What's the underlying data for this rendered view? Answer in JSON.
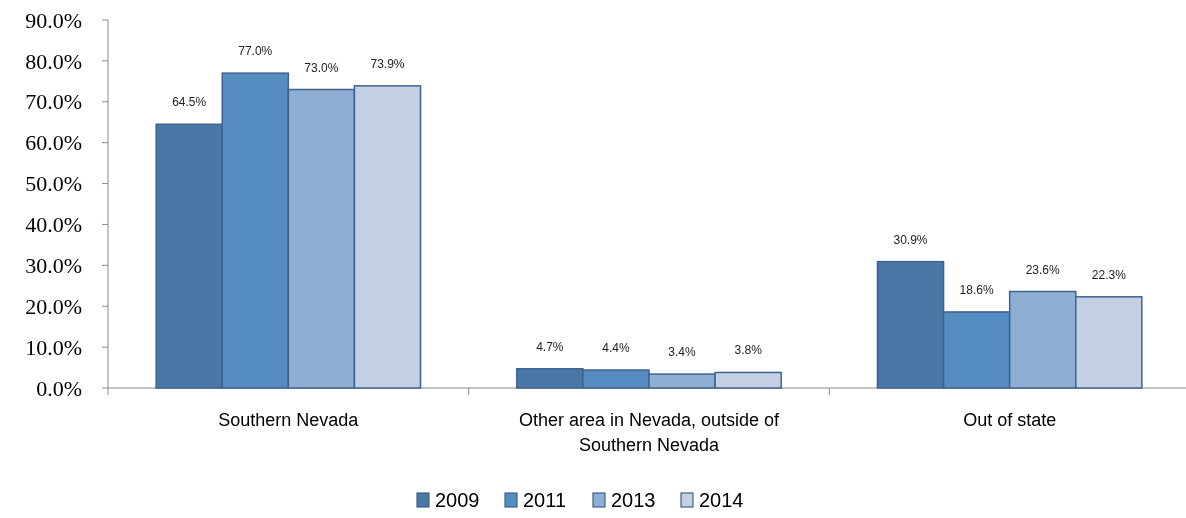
{
  "chart_data": {
    "type": "bar",
    "categories": [
      "Southern Nevada",
      "Other area in Nevada, outside of Southern Nevada",
      "Out of state"
    ],
    "series": [
      {
        "name": "2009",
        "color": "#4a77a6",
        "values": [
          64.5,
          4.7,
          30.9
        ],
        "value_labels": [
          "64.5%",
          "4.7%",
          "30.9%"
        ]
      },
      {
        "name": "2011",
        "color": "#568dc1",
        "values": [
          77.0,
          4.4,
          18.6
        ],
        "value_labels": [
          "77.0%",
          "4.4%",
          "18.6%"
        ]
      },
      {
        "name": "2013",
        "color": "#8eaed4",
        "values": [
          73.0,
          3.4,
          23.6
        ],
        "value_labels": [
          "73.0%",
          "3.4%",
          "23.6%"
        ]
      },
      {
        "name": "2014",
        "color": "#c3cfe3",
        "values": [
          73.9,
          3.8,
          22.3
        ],
        "value_labels": [
          "73.9%",
          "3.8%",
          "22.3%"
        ]
      }
    ],
    "ylim": [
      0,
      90
    ],
    "yticks": [
      {
        "value": 0,
        "label": "0.0%"
      },
      {
        "value": 10,
        "label": "10.0%"
      },
      {
        "value": 20,
        "label": "20.0%"
      },
      {
        "value": 30,
        "label": "30.0%"
      },
      {
        "value": 40,
        "label": "40.0%"
      },
      {
        "value": 50,
        "label": "50.0%"
      },
      {
        "value": 60,
        "label": "60.0%"
      },
      {
        "value": 70,
        "label": "70.0%"
      },
      {
        "value": 80,
        "label": "80.0%"
      },
      {
        "value": 90,
        "label": "90.0%"
      }
    ],
    "grid": false,
    "legend": "bottom"
  }
}
